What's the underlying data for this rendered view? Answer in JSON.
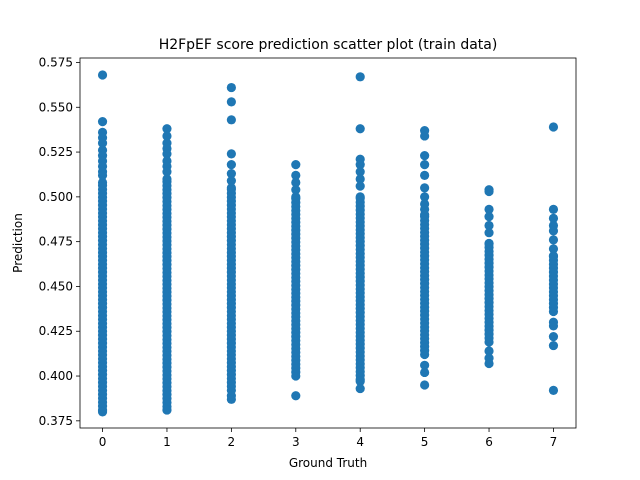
{
  "chart_data": {
    "type": "scatter",
    "title": "H2FpEF score prediction scatter plot (train data)",
    "xlabel": "Ground Truth",
    "ylabel": "Prediction",
    "xlim": [
      -0.35,
      7.35
    ],
    "ylim": [
      0.371,
      0.5775
    ],
    "x_ticks": [
      0,
      1,
      2,
      3,
      4,
      5,
      6,
      7
    ],
    "x_tick_labels": [
      "0",
      "1",
      "2",
      "3",
      "4",
      "5",
      "6",
      "7"
    ],
    "y_ticks": [
      0.375,
      0.4,
      0.425,
      0.45,
      0.475,
      0.5,
      0.525,
      0.55,
      0.575
    ],
    "y_tick_labels": [
      "0.375",
      "0.400",
      "0.425",
      "0.450",
      "0.475",
      "0.500",
      "0.525",
      "0.550",
      "0.575"
    ],
    "grid": false,
    "marker_color": "#1f77b4",
    "series": [
      {
        "x_value": 0,
        "dense_range": [
          0.381,
          0.508
        ],
        "outliers": [
          0.568,
          0.542,
          0.536,
          0.533,
          0.53,
          0.526,
          0.523,
          0.52,
          0.517,
          0.514,
          0.512,
          0.38
        ]
      },
      {
        "x_value": 1,
        "dense_range": [
          0.383,
          0.51
        ],
        "outliers": [
          0.538,
          0.534,
          0.53,
          0.527,
          0.524,
          0.52,
          0.517,
          0.514,
          0.381
        ]
      },
      {
        "x_value": 2,
        "dense_range": [
          0.392,
          0.505
        ],
        "outliers": [
          0.561,
          0.553,
          0.543,
          0.524,
          0.518,
          0.513,
          0.509,
          0.389,
          0.387
        ]
      },
      {
        "x_value": 3,
        "dense_range": [
          0.4,
          0.5
        ],
        "outliers": [
          0.518,
          0.512,
          0.508,
          0.504,
          0.389
        ]
      },
      {
        "x_value": 4,
        "dense_range": [
          0.398,
          0.5
        ],
        "outliers": [
          0.567,
          0.538,
          0.521,
          0.518,
          0.514,
          0.51,
          0.506,
          0.397,
          0.393
        ]
      },
      {
        "x_value": 5,
        "dense_range": [
          0.412,
          0.49
        ],
        "outliers": [
          0.537,
          0.534,
          0.523,
          0.518,
          0.512,
          0.505,
          0.5,
          0.496,
          0.493,
          0.406,
          0.402,
          0.395
        ]
      },
      {
        "x_value": 6,
        "dense_range": [
          0.419,
          0.474
        ],
        "outliers": [
          0.504,
          0.503,
          0.493,
          0.489,
          0.484,
          0.48,
          0.414,
          0.41,
          0.407
        ]
      },
      {
        "x_value": 7,
        "dense_range": [
          0.436,
          0.467
        ],
        "outliers": [
          0.539,
          0.493,
          0.488,
          0.484,
          0.481,
          0.476,
          0.471,
          0.43,
          0.428,
          0.422,
          0.417,
          0.392
        ]
      }
    ]
  }
}
